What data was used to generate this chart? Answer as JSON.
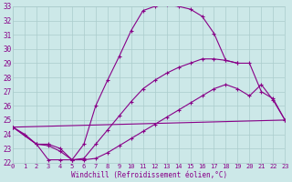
{
  "xlabel": "Windchill (Refroidissement éolien,°C)",
  "xlim": [
    0,
    23
  ],
  "ylim": [
    22,
    33
  ],
  "xticks": [
    0,
    1,
    2,
    3,
    4,
    5,
    6,
    7,
    8,
    9,
    10,
    11,
    12,
    13,
    14,
    15,
    16,
    17,
    18,
    19,
    20,
    21,
    22,
    23
  ],
  "yticks": [
    22,
    23,
    24,
    25,
    26,
    27,
    28,
    29,
    30,
    31,
    32,
    33
  ],
  "bg_color": "#cce8e8",
  "line_color": "#880088",
  "grid_color": "#aacccc",
  "lines": [
    {
      "x": [
        0,
        1,
        2,
        3,
        4,
        5,
        6,
        7,
        8,
        9,
        10,
        11,
        12,
        13,
        14,
        15,
        16,
        17,
        18,
        19
      ],
      "y": [
        24.5,
        24.0,
        23.3,
        22.2,
        22.2,
        22.2,
        23.3,
        26.0,
        27.8,
        29.5,
        31.3,
        32.7,
        33.0,
        33.1,
        33.0,
        32.8,
        32.3,
        31.1,
        29.2,
        29.0
      ]
    },
    {
      "x": [
        0,
        23
      ],
      "y": [
        24.5,
        25.0
      ]
    },
    {
      "x": [
        0,
        2,
        3,
        4,
        5,
        6,
        7,
        8,
        9,
        10,
        11,
        12,
        13,
        14,
        15,
        16,
        17,
        18,
        19,
        20,
        21,
        22,
        23
      ],
      "y": [
        24.5,
        23.3,
        23.3,
        23.0,
        22.2,
        22.3,
        23.3,
        24.3,
        25.3,
        26.3,
        27.2,
        27.8,
        28.3,
        28.7,
        29.0,
        29.3,
        29.3,
        29.2,
        29.0,
        29.0,
        27.0,
        26.5,
        25.0
      ]
    },
    {
      "x": [
        0,
        2,
        3,
        4,
        5,
        6,
        7,
        8,
        9,
        10,
        11,
        12,
        13,
        14,
        15,
        16,
        17,
        18,
        19,
        20,
        21,
        22,
        23
      ],
      "y": [
        24.5,
        23.3,
        23.2,
        22.8,
        22.2,
        22.2,
        22.3,
        22.7,
        23.2,
        23.7,
        24.2,
        24.7,
        25.2,
        25.7,
        26.2,
        26.7,
        27.2,
        27.5,
        27.2,
        26.7,
        27.5,
        26.4,
        25.0
      ]
    }
  ]
}
